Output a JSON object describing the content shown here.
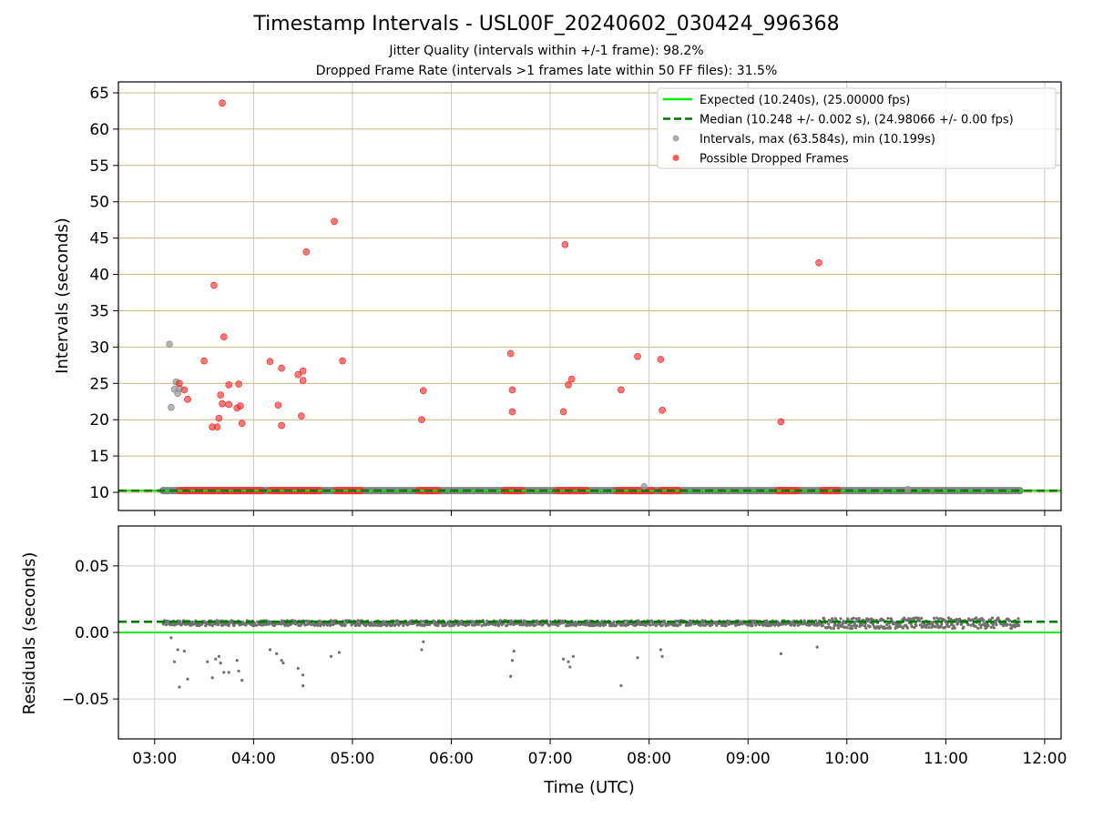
{
  "figure": {
    "title": "Timestamp Intervals - USL00F_20240602_030424_996368",
    "subtitle_jitter": "Jitter Quality (intervals within +/-1 frame): 98.2%",
    "subtitle_dropped": "Dropped Frame Rate (intervals >1 frames late within 50 FF files): 31.5%"
  },
  "chart_data": [
    {
      "type": "scatter",
      "panel": "top",
      "ylabel": "Intervals (seconds)",
      "xlabel": "",
      "xlim": [
        "02:38",
        "12:10"
      ],
      "ylim": [
        7.5,
        66.5
      ],
      "yticks": [
        10,
        15,
        20,
        25,
        30,
        35,
        40,
        45,
        50,
        55,
        60,
        65
      ],
      "xticks": [
        "03:00",
        "04:00",
        "05:00",
        "06:00",
        "07:00",
        "08:00",
        "09:00",
        "10:00",
        "11:00",
        "12:00"
      ],
      "grid": {
        "horizontal": true,
        "vertical": true,
        "hcolor": "#c8bc7a"
      },
      "legend_position": "top-right",
      "legend": [
        {
          "label": "Expected (10.240s), (25.00000 fps)",
          "kind": "line",
          "color": "#00ee00",
          "dash": false
        },
        {
          "label": "Median (10.248 +/- 0.002 s), (24.98066 +/- 0.00 fps)",
          "kind": "line",
          "color": "#007700",
          "dash": true
        },
        {
          "label": "Intervals, max (63.584s), min (10.199s)",
          "kind": "marker",
          "color": "#999999"
        },
        {
          "label": "Possible Dropped Frames",
          "kind": "marker",
          "color": "#ff3030"
        }
      ],
      "expected_line": 10.24,
      "median_line": 10.248,
      "interval_band": {
        "x_start": "03:05",
        "x_end": "11:45",
        "value": 10.24,
        "color": "#707070"
      },
      "series": [
        {
          "kind": "intervals",
          "color": "#999999",
          "points": [
            [
              "03:09",
              30.4
            ],
            [
              "03:10",
              21.7
            ],
            [
              "03:12",
              24.2
            ],
            [
              "03:13",
              25.2
            ],
            [
              "03:14",
              23.6
            ],
            [
              "03:15",
              24.3
            ],
            [
              "07:57",
              10.8
            ],
            [
              "10:37",
              10.4
            ]
          ]
        },
        {
          "kind": "dropped",
          "color": "#ff3030",
          "points": [
            [
              "03:41",
              63.6
            ],
            [
              "03:36",
              38.5
            ],
            [
              "03:42",
              31.4
            ],
            [
              "03:30",
              28.1
            ],
            [
              "03:15",
              25.0
            ],
            [
              "03:18",
              24.1
            ],
            [
              "03:20",
              22.8
            ],
            [
              "03:45",
              24.8
            ],
            [
              "03:51",
              24.9
            ],
            [
              "03:40",
              23.4
            ],
            [
              "03:41",
              22.2
            ],
            [
              "03:45",
              22.1
            ],
            [
              "03:50",
              21.6
            ],
            [
              "03:52",
              21.9
            ],
            [
              "03:39",
              20.2
            ],
            [
              "03:35",
              19.0
            ],
            [
              "03:38",
              19.0
            ],
            [
              "03:53",
              19.5
            ],
            [
              "04:10",
              28.0
            ],
            [
              "04:17",
              27.1
            ],
            [
              "04:15",
              22.0
            ],
            [
              "04:17",
              19.2
            ],
            [
              "04:27",
              26.2
            ],
            [
              "04:30",
              25.4
            ],
            [
              "04:30",
              26.7
            ],
            [
              "04:29",
              20.5
            ],
            [
              "04:32",
              43.1
            ],
            [
              "04:49",
              47.3
            ],
            [
              "04:54",
              28.1
            ],
            [
              "05:42",
              20.0
            ],
            [
              "05:43",
              24.0
            ],
            [
              "06:36",
              29.1
            ],
            [
              "06:37",
              21.1
            ],
            [
              "06:37",
              24.1
            ],
            [
              "07:09",
              44.1
            ],
            [
              "07:08",
              21.1
            ],
            [
              "07:11",
              24.8
            ],
            [
              "07:13",
              25.6
            ],
            [
              "07:43",
              24.1
            ],
            [
              "07:53",
              28.7
            ],
            [
              "08:07",
              28.3
            ],
            [
              "08:08",
              21.3
            ],
            [
              "09:20",
              19.7
            ],
            [
              "09:43",
              41.6
            ]
          ],
          "baseline_clusters": [
            [
              "03:15",
              "04:05"
            ],
            [
              "04:10",
              "04:40"
            ],
            [
              "04:50",
              "05:05"
            ],
            [
              "05:40",
              "05:52"
            ],
            [
              "06:32",
              "06:43"
            ],
            [
              "07:04",
              "07:22"
            ],
            [
              "07:40",
              "08:02"
            ],
            [
              "08:07",
              "08:18"
            ],
            [
              "09:18",
              "09:30"
            ],
            [
              "09:45",
              "09:55"
            ]
          ]
        }
      ]
    },
    {
      "type": "scatter",
      "panel": "bottom",
      "ylabel": "Residuals (seconds)",
      "xlabel": "Time (UTC)",
      "xlim": [
        "02:38",
        "12:10"
      ],
      "ylim": [
        -0.08,
        0.08
      ],
      "yticks": [
        -0.05,
        0.0,
        0.05
      ],
      "ytick_labels": [
        "−0.05",
        "0.00",
        "0.05"
      ],
      "xticks": [
        "03:00",
        "04:00",
        "05:00",
        "06:00",
        "07:00",
        "08:00",
        "09:00",
        "10:00",
        "11:00",
        "12:00"
      ],
      "grid": {
        "horizontal": true,
        "vertical": true,
        "hcolor": "#cccccc"
      },
      "expected_line": 0.0,
      "median_line": 0.008,
      "residual_band": {
        "x_start": "03:05",
        "x_end": "11:45",
        "center": 0.007,
        "spread_early": 0.002,
        "spread_late": 0.004,
        "late_from": "09:45",
        "color": "#707070"
      },
      "outliers": [
        [
          "03:10",
          -0.004
        ],
        [
          "03:12",
          -0.022
        ],
        [
          "03:14",
          -0.013
        ],
        [
          "03:15",
          -0.041
        ],
        [
          "03:18",
          -0.014
        ],
        [
          "03:20",
          -0.035
        ],
        [
          "03:32",
          -0.022
        ],
        [
          "03:35",
          -0.034
        ],
        [
          "03:37",
          -0.02
        ],
        [
          "03:39",
          -0.018
        ],
        [
          "03:40",
          -0.023
        ],
        [
          "03:42",
          -0.03
        ],
        [
          "03:45",
          -0.03
        ],
        [
          "03:50",
          -0.021
        ],
        [
          "03:51",
          -0.029
        ],
        [
          "03:53",
          -0.036
        ],
        [
          "04:10",
          -0.013
        ],
        [
          "04:14",
          -0.016
        ],
        [
          "04:17",
          -0.021
        ],
        [
          "04:18",
          -0.023
        ],
        [
          "04:27",
          -0.027
        ],
        [
          "04:30",
          -0.04
        ],
        [
          "04:30",
          -0.032
        ],
        [
          "04:47",
          -0.018
        ],
        [
          "04:52",
          -0.015
        ],
        [
          "05:42",
          -0.013
        ],
        [
          "05:43",
          -0.007
        ],
        [
          "06:36",
          -0.033
        ],
        [
          "06:37",
          -0.021
        ],
        [
          "06:38",
          -0.014
        ],
        [
          "07:08",
          -0.02
        ],
        [
          "07:11",
          -0.022
        ],
        [
          "07:12",
          -0.026
        ],
        [
          "07:14",
          -0.018
        ],
        [
          "07:43",
          -0.04
        ],
        [
          "07:53",
          -0.019
        ],
        [
          "08:07",
          -0.013
        ],
        [
          "08:08",
          -0.018
        ],
        [
          "09:20",
          -0.016
        ],
        [
          "09:42",
          -0.011
        ]
      ]
    }
  ]
}
